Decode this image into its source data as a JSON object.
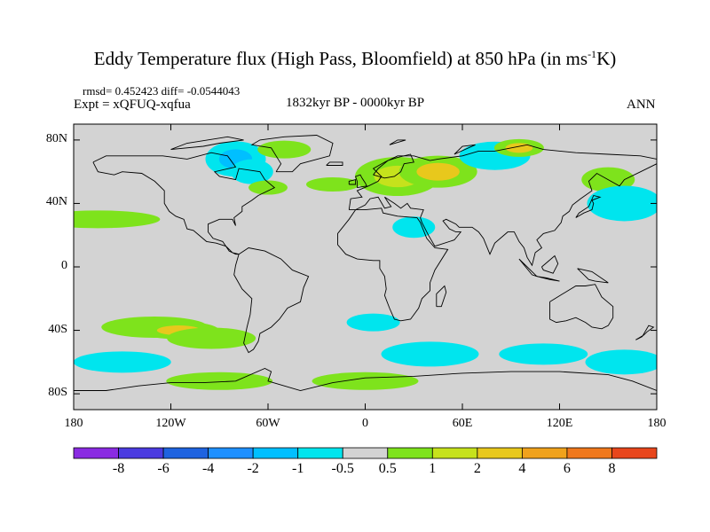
{
  "title": {
    "text": "Eddy Temperature flux (High Pass, Bloomfield) at 850 hPa (in ms",
    "sup": "-1",
    "suffix": "K)"
  },
  "stats": "rmsd= 0.452423 diff= -0.0544043",
  "experiment": "Expt = xQFUQ-xqfua",
  "period": "1832kyr BP - 0000kyr BP",
  "season": "ANN",
  "map": {
    "lon_range": [
      -180,
      180
    ],
    "lat_range": [
      -90,
      90
    ],
    "background_color": "#d3d3d3",
    "y_ticks": [
      {
        "value": 80,
        "label": "80N"
      },
      {
        "value": 40,
        "label": "40N"
      },
      {
        "value": 0,
        "label": "0"
      },
      {
        "value": -40,
        "label": "40S"
      },
      {
        "value": -80,
        "label": "80S"
      }
    ],
    "x_ticks": [
      {
        "value": -180,
        "label": "180"
      },
      {
        "value": -120,
        "label": "120W"
      },
      {
        "value": -60,
        "label": "60W"
      },
      {
        "value": 0,
        "label": "0"
      },
      {
        "value": 60,
        "label": "60E"
      },
      {
        "value": 120,
        "label": "120E"
      },
      {
        "value": 180,
        "label": "180"
      }
    ]
  },
  "colorbar": {
    "levels": [
      "-8",
      "-6",
      "-4",
      "-2",
      "-1",
      "-0.5",
      "0.5",
      "1",
      "2",
      "4",
      "6",
      "8"
    ],
    "colors": [
      "#8a2be2",
      "#4b3be0",
      "#1e63e0",
      "#1e90ff",
      "#00bfff",
      "#00e5ee",
      "#d3d3d3",
      "#7ee31c",
      "#c6e21c",
      "#e8c81c",
      "#f0a21c",
      "#f0781c",
      "#e8461c"
    ]
  },
  "field_anomalies": [
    {
      "lon": -165,
      "lat": 30,
      "value": 0.7
    },
    {
      "lon": -130,
      "lat": -38,
      "value": 1.0
    },
    {
      "lon": -115,
      "lat": -40,
      "value": 2.5
    },
    {
      "lon": -95,
      "lat": -45,
      "value": 0.8
    },
    {
      "lon": -80,
      "lat": 68,
      "value": -1.5
    },
    {
      "lon": -70,
      "lat": 60,
      "value": -0.8
    },
    {
      "lon": -60,
      "lat": 50,
      "value": 0.7
    },
    {
      "lon": -50,
      "lat": 74,
      "value": 0.7
    },
    {
      "lon": -20,
      "lat": 52,
      "value": 0.7
    },
    {
      "lon": 20,
      "lat": 57,
      "value": 1.5
    },
    {
      "lon": 45,
      "lat": 60,
      "value": 2.0
    },
    {
      "lon": 80,
      "lat": 70,
      "value": -1.0
    },
    {
      "lon": 95,
      "lat": 75,
      "value": 2.5
    },
    {
      "lon": 150,
      "lat": 55,
      "value": 0.7
    },
    {
      "lon": 160,
      "lat": 40,
      "value": -1.0
    },
    {
      "lon": 30,
      "lat": 25,
      "value": -0.7
    },
    {
      "lon": 5,
      "lat": -35,
      "value": -0.8
    },
    {
      "lon": 40,
      "lat": -55,
      "value": -1.0
    },
    {
      "lon": 110,
      "lat": -55,
      "value": -0.8
    },
    {
      "lon": 160,
      "lat": -60,
      "value": -0.8
    },
    {
      "lon": -150,
      "lat": -60,
      "value": -0.8
    },
    {
      "lon": -90,
      "lat": -72,
      "value": 0.7
    },
    {
      "lon": 0,
      "lat": -72,
      "value": 0.7
    }
  ]
}
